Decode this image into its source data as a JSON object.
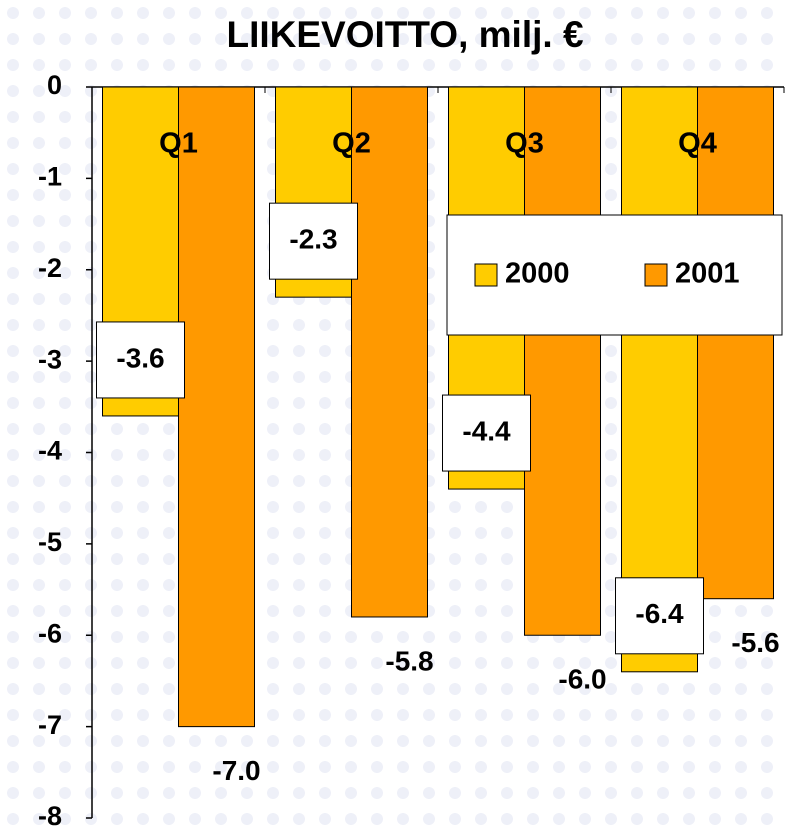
{
  "chart_data": {
    "type": "bar",
    "title": "LIIKEVOITTO, milj. €",
    "categories": [
      "Q1",
      "Q2",
      "Q3",
      "Q4"
    ],
    "series": [
      {
        "name": "2000",
        "color": "#ffcc00",
        "values": [
          -3.6,
          -2.3,
          -4.4,
          -6.4
        ],
        "value_labels": [
          "-3.6",
          "-2.3",
          "-4.4",
          "-6.4"
        ]
      },
      {
        "name": "2001",
        "color": "#ff9900",
        "values": [
          -7.0,
          -5.8,
          -6.0,
          -5.6
        ],
        "value_labels": [
          "-7.0",
          "-5.8",
          "-6.0",
          "-5.6"
        ]
      }
    ],
    "ylim": [
      -8,
      0
    ],
    "yticks": [
      0,
      -1,
      -2,
      -3,
      -4,
      -5,
      -6,
      -7,
      -8
    ],
    "grid": false
  }
}
